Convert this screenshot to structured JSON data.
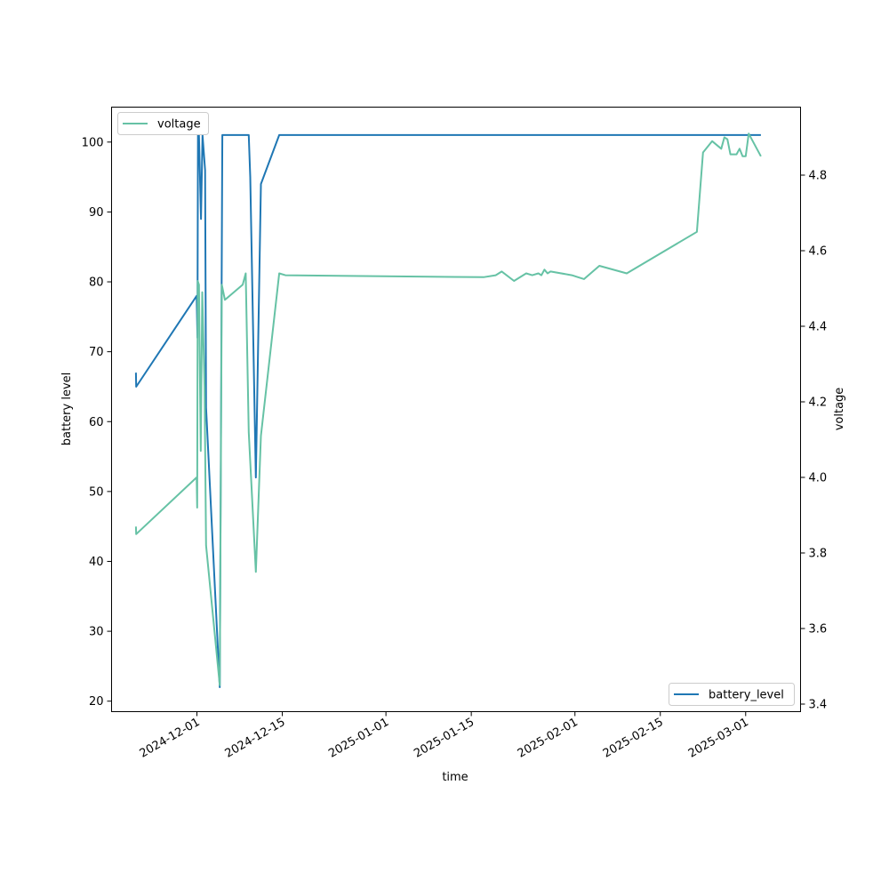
{
  "chart_data": {
    "type": "line",
    "xlabel": "time",
    "ylabel": "battery level",
    "y2label": "voltage",
    "x_ticks": [
      "2024-12-01",
      "2024-12-15",
      "2025-01-01",
      "2025-01-15",
      "2025-02-01",
      "2025-02-15",
      "2025-03-01"
    ],
    "xlim": [
      "2024-11-17",
      "2025-03-10"
    ],
    "ylim": [
      18.5,
      105
    ],
    "y_ticks": [
      20,
      30,
      40,
      50,
      60,
      70,
      80,
      90,
      100
    ],
    "y2lim": [
      3.38,
      4.98
    ],
    "y2_ticks": [
      "3.4",
      "3.6",
      "3.8",
      "4.0",
      "4.2",
      "4.4",
      "4.6",
      "4.8"
    ],
    "grid": false,
    "series": [
      {
        "name": "battery_level",
        "axis": "left",
        "color": "#1f77b4",
        "legend_position": "lower-right",
        "points": [
          [
            "2024-11-21 00:00",
            67
          ],
          [
            "2024-11-21 01:00",
            65
          ],
          [
            "2024-11-30 23:00",
            78
          ],
          [
            "2024-12-01 02:00",
            72
          ],
          [
            "2024-12-01 04:00",
            101
          ],
          [
            "2024-12-01 08:00",
            101
          ],
          [
            "2024-12-01 16:00",
            89
          ],
          [
            "2024-12-01 22:00",
            101
          ],
          [
            "2024-12-02 08:00",
            96
          ],
          [
            "2024-12-02 12:00",
            62
          ],
          [
            "2024-12-04 18:00",
            22
          ],
          [
            "2024-12-05 04:00",
            101
          ],
          [
            "2024-12-09 12:00",
            101
          ],
          [
            "2024-12-09 18:00",
            95
          ],
          [
            "2024-12-10 16:00",
            52
          ],
          [
            "2024-12-11 12:00",
            94
          ],
          [
            "2024-12-14 12:00",
            101
          ],
          [
            "2025-03-03 12:00",
            101
          ]
        ]
      },
      {
        "name": "voltage",
        "axis": "right",
        "color": "#66c2a5",
        "legend_position": "upper-left",
        "points": [
          [
            "2024-11-21 00:00",
            3.87
          ],
          [
            "2024-11-21 01:00",
            3.85
          ],
          [
            "2024-11-30 23:00",
            4.0
          ],
          [
            "2024-12-01 01:00",
            3.92
          ],
          [
            "2024-12-01 03:00",
            4.52
          ],
          [
            "2024-12-01 08:00",
            4.51
          ],
          [
            "2024-12-01 15:00",
            4.07
          ],
          [
            "2024-12-01 21:00",
            4.49
          ],
          [
            "2024-12-02 06:00",
            4.24
          ],
          [
            "2024-12-02 12:00",
            3.82
          ],
          [
            "2024-12-04 18:00",
            3.45
          ],
          [
            "2024-12-05 02:00",
            4.51
          ],
          [
            "2024-12-05 14:00",
            4.47
          ],
          [
            "2024-12-08 12:00",
            4.51
          ],
          [
            "2024-12-09 00:00",
            4.54
          ],
          [
            "2024-12-09 12:00",
            4.12
          ],
          [
            "2024-12-10 16:00",
            3.75
          ],
          [
            "2024-12-11 12:00",
            4.11
          ],
          [
            "2024-12-14 12:00",
            4.54
          ],
          [
            "2024-12-15 12:00",
            4.535
          ],
          [
            "2025-01-17 00:00",
            4.53
          ],
          [
            "2025-01-19 00:00",
            4.535
          ],
          [
            "2025-01-20 00:00",
            4.545
          ],
          [
            "2025-01-22 00:00",
            4.52
          ],
          [
            "2025-01-24 00:00",
            4.54
          ],
          [
            "2025-01-25 00:00",
            4.535
          ],
          [
            "2025-01-26 00:00",
            4.54
          ],
          [
            "2025-01-26 12:00",
            4.535
          ],
          [
            "2025-01-27 00:00",
            4.55
          ],
          [
            "2025-01-27 12:00",
            4.54
          ],
          [
            "2025-01-28 00:00",
            4.545
          ],
          [
            "2025-01-31 12:00",
            4.535
          ],
          [
            "2025-02-01 12:00",
            4.53
          ],
          [
            "2025-02-02 12:00",
            4.525
          ],
          [
            "2025-02-05 00:00",
            4.56
          ],
          [
            "2025-02-09 12:00",
            4.54
          ],
          [
            "2025-02-21 00:00",
            4.65
          ],
          [
            "2025-02-22 00:00",
            4.86
          ],
          [
            "2025-02-23 12:00",
            4.89
          ],
          [
            "2025-02-25 00:00",
            4.87
          ],
          [
            "2025-02-25 12:00",
            4.9
          ],
          [
            "2025-02-26 00:00",
            4.895
          ],
          [
            "2025-02-26 12:00",
            4.855
          ],
          [
            "2025-02-27 12:00",
            4.855
          ],
          [
            "2025-02-28 00:00",
            4.87
          ],
          [
            "2025-02-28 12:00",
            4.85
          ],
          [
            "2025-03-01 00:00",
            4.85
          ],
          [
            "2025-03-01 12:00",
            4.91
          ],
          [
            "2025-03-03 12:00",
            4.85
          ]
        ]
      }
    ]
  }
}
